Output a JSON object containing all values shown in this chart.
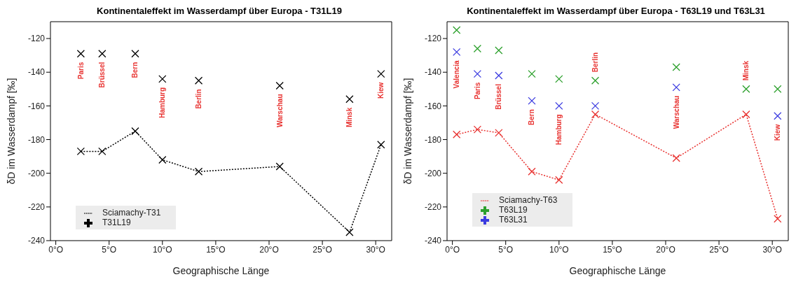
{
  "chart_data": [
    {
      "type": "scatter",
      "title": "Kontinentaleffekt im Wasserdampf über Europa - T31L19",
      "xlabel": "Geographische Länge",
      "ylabel": "δD im Wasserdampf [‰]",
      "xlim": [
        -0.5,
        31.5
      ],
      "ylim": [
        -240,
        -110
      ],
      "xticks": [
        {
          "value": 0,
          "label": "0°O"
        },
        {
          "value": 5,
          "label": "5°O"
        },
        {
          "value": 10,
          "label": "10°O"
        },
        {
          "value": 15,
          "label": "15°O"
        },
        {
          "value": 20,
          "label": "20°O"
        },
        {
          "value": 25,
          "label": "25°O"
        },
        {
          "value": 30,
          "label": "30°O"
        }
      ],
      "yticks": [
        -240,
        -220,
        -200,
        -180,
        -160,
        -140,
        -120
      ],
      "grid": false,
      "legend": "bottom left",
      "marker": "cross",
      "series": [
        {
          "name": "T31L19",
          "color": "#000000",
          "x": [
            2.35,
            4.35,
            7.45,
            10.0,
            13.4,
            21.0,
            27.55,
            30.5
          ],
          "values": [
            -129,
            -129,
            -129,
            -144,
            -145,
            -148,
            -156,
            -141
          ]
        },
        {
          "name": "Sciamachy-T31",
          "type": "line",
          "line_style": "dotted",
          "color": "#000000",
          "x": [
            2.35,
            4.35,
            7.45,
            10.0,
            13.4,
            21.0,
            27.55,
            30.5
          ],
          "values": [
            -187,
            -187,
            -175,
            -192,
            -199,
            -196,
            -235,
            -183
          ]
        }
      ],
      "annotations": [
        {
          "text": "Paris",
          "x": 2.35,
          "y": -129
        },
        {
          "text": "Brüssel",
          "x": 4.35,
          "y": -129
        },
        {
          "text": "Bern",
          "x": 7.45,
          "y": -129
        },
        {
          "text": "Hamburg",
          "x": 10.0,
          "y": -144
        },
        {
          "text": "Berlin",
          "x": 13.4,
          "y": -145
        },
        {
          "text": "Warschau",
          "x": 21.0,
          "y": -148
        },
        {
          "text": "Minsk",
          "x": 27.55,
          "y": -156
        },
        {
          "text": "Kiew",
          "x": 30.5,
          "y": -141
        }
      ]
    },
    {
      "type": "scatter",
      "title": "Kontinentaleffekt im Wasserdampf über Europa - T63L19 und T63L31",
      "xlabel": "Geographische Länge",
      "ylabel": "δD im Wasserdampf [‰]",
      "xlim": [
        -0.5,
        31.5
      ],
      "ylim": [
        -240,
        -110
      ],
      "xticks": [
        {
          "value": 0,
          "label": "0°O"
        },
        {
          "value": 5,
          "label": "5°O"
        },
        {
          "value": 10,
          "label": "10°O"
        },
        {
          "value": 15,
          "label": "15°O"
        },
        {
          "value": 20,
          "label": "20°O"
        },
        {
          "value": 25,
          "label": "25°O"
        },
        {
          "value": 30,
          "label": "30°O"
        }
      ],
      "yticks": [
        -240,
        -220,
        -200,
        -180,
        -160,
        -140,
        -120
      ],
      "grid": false,
      "legend": "bottom left",
      "marker": "cross",
      "series": [
        {
          "name": "T63L19",
          "color": "#2ca02c",
          "x": [
            0.4,
            2.35,
            4.35,
            7.45,
            10.0,
            13.4,
            21.0,
            27.55,
            30.5
          ],
          "values": [
            -115,
            -126,
            -127,
            -141,
            -144,
            -145,
            -137,
            -150,
            -150
          ]
        },
        {
          "name": "T63L31",
          "color": "#3b3be0",
          "x": [
            0.4,
            2.35,
            4.35,
            7.45,
            10.0,
            13.4,
            21.0,
            27.55,
            30.5
          ],
          "values": [
            -128,
            -141,
            -142,
            -157,
            -160,
            -160,
            -149,
            null,
            -166
          ]
        },
        {
          "name": "Sciamachy-T63",
          "type": "line",
          "line_style": "dotted",
          "color": "#e8312f",
          "x": [
            0.4,
            2.35,
            4.35,
            7.45,
            10.0,
            13.4,
            21.0,
            27.55,
            30.5
          ],
          "values": [
            -177,
            -174,
            -176,
            -199,
            -204,
            -165,
            -191,
            -165,
            -227
          ]
        }
      ],
      "annotations": [
        {
          "text": "Valencia",
          "x": 0.4,
          "y": -128
        },
        {
          "text": "Paris",
          "x": 2.35,
          "y": -141
        },
        {
          "text": "Brüssel",
          "x": 4.35,
          "y": -142
        },
        {
          "text": "Bern",
          "x": 7.45,
          "y": -157
        },
        {
          "text": "Hamburg",
          "x": 10.0,
          "y": -160
        },
        {
          "text": "Berlin",
          "x": 13.4,
          "y": -145
        },
        {
          "text": "Warschau",
          "x": 21.0,
          "y": -149
        },
        {
          "text": "Minsk",
          "x": 27.55,
          "y": -150
        },
        {
          "text": "Kiew",
          "x": 30.5,
          "y": -166
        }
      ]
    }
  ]
}
